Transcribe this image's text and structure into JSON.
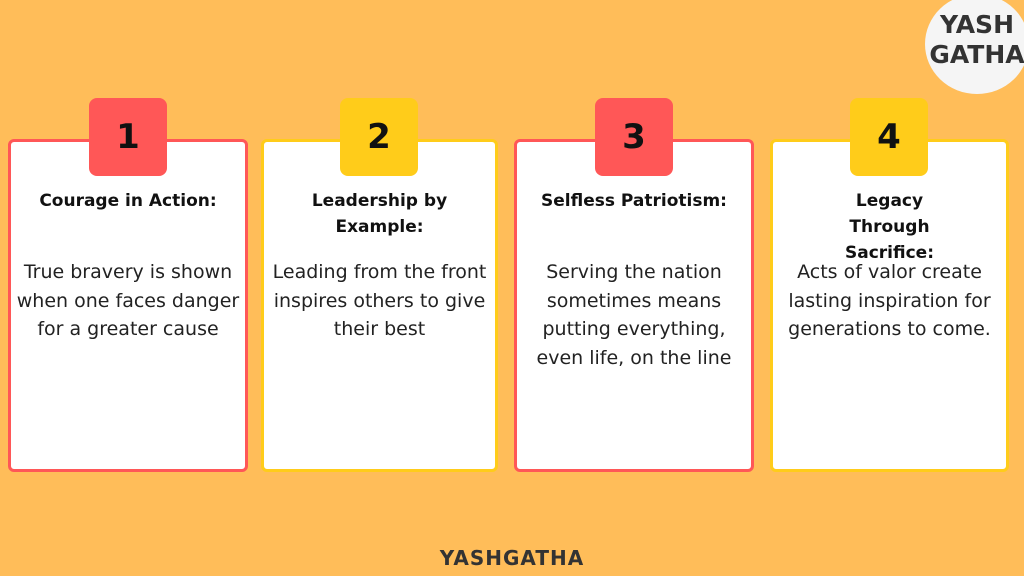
{
  "logo": {
    "line1": "YASH",
    "line2": "GATHA"
  },
  "colors": {
    "background": "#FFBD59",
    "red": "#FF5757",
    "yellow": "#FFCC1A"
  },
  "cards": [
    {
      "number": "1",
      "title": "Courage in Action:",
      "body": "True bravery is shown when one faces danger for a greater cause",
      "color": "red"
    },
    {
      "number": "2",
      "title": "Leadership by Example:",
      "body": "Leading from the front inspires others to give their best",
      "color": "yellow"
    },
    {
      "number": "3",
      "title": "Selfless Patriotism:",
      "body": "Serving the nation sometimes means putting everything, even life, on the line",
      "color": "red"
    },
    {
      "number": "4",
      "title": "Legacy Through Sacrifice:",
      "body": "Acts of valor create lasting inspiration for generations to come.",
      "color": "yellow"
    }
  ],
  "footer": "YASHGATHA"
}
